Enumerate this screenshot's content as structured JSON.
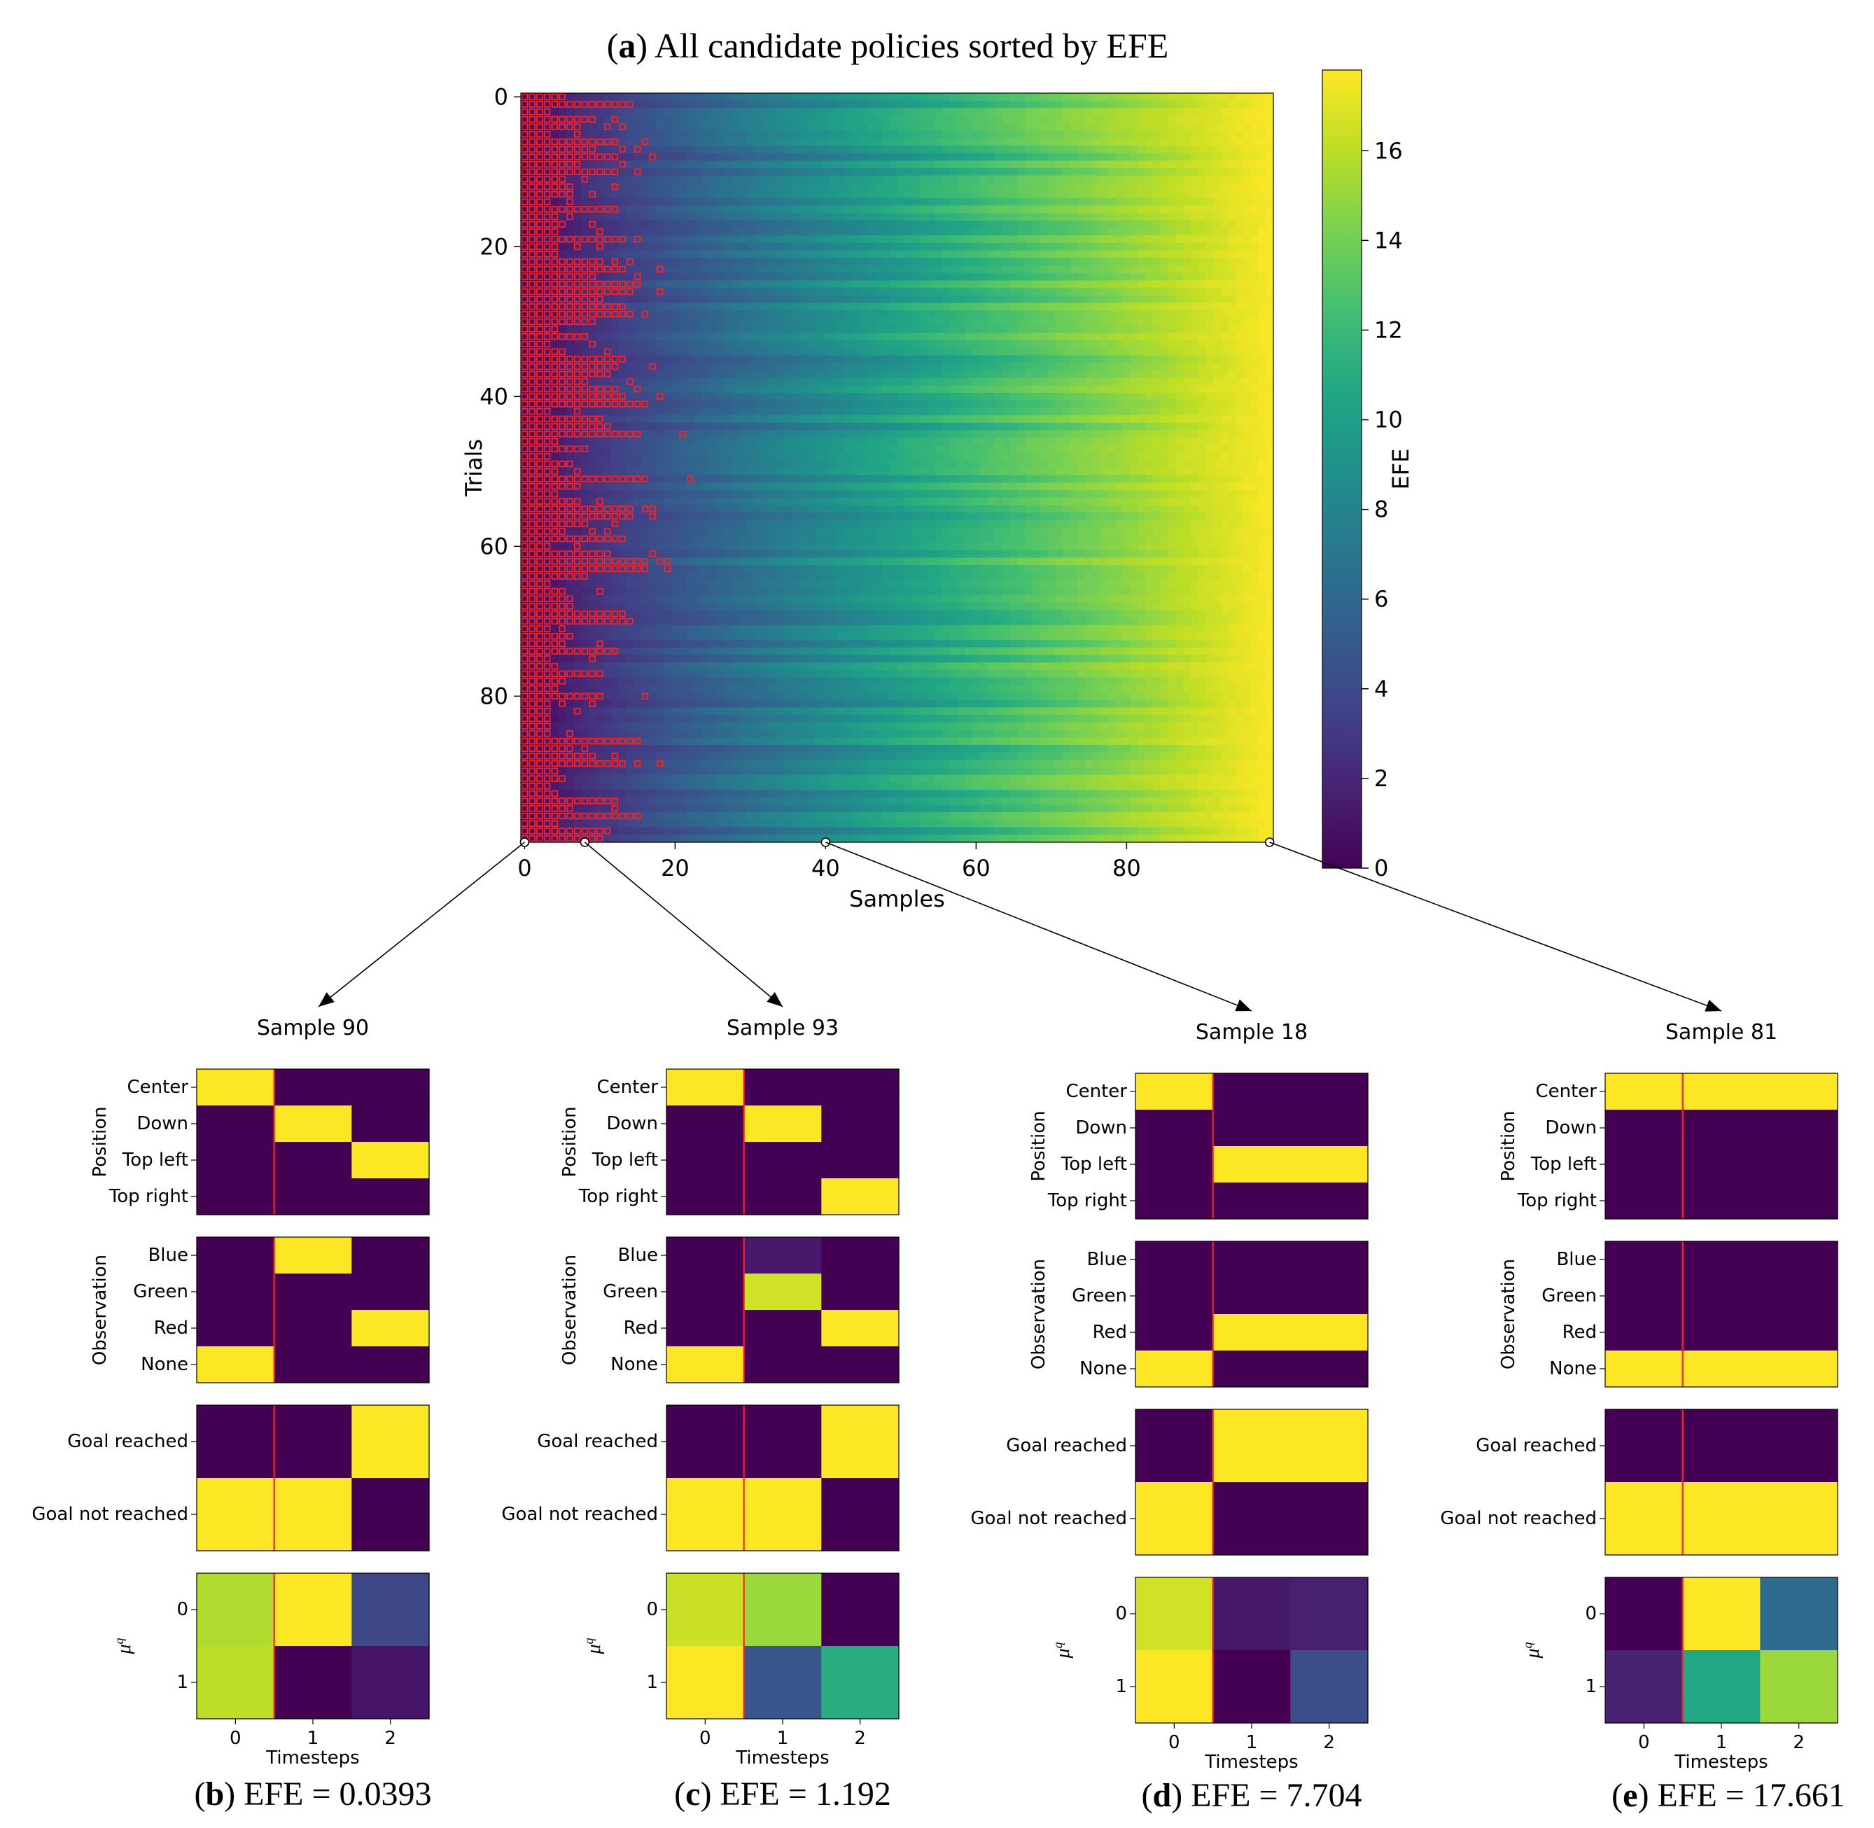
{
  "chart_data": [
    {
      "type": "heatmap",
      "panel_tag": "a",
      "title": "All candidate policies sorted by EFE",
      "xlabel": "Samples",
      "ylabel": "Trials",
      "xlim": [
        0,
        100
      ],
      "ylim": [
        0,
        100
      ],
      "xticks": [
        0,
        20,
        40,
        60,
        80
      ],
      "yticks": [
        0,
        20,
        40,
        60,
        80
      ],
      "colorbar_label": "EFE",
      "colorbar_ticks": [
        0,
        2,
        4,
        6,
        8,
        10,
        12,
        14,
        16
      ],
      "colorbar_range": [
        0,
        17.8
      ],
      "value_model": "EFE rises from about 0 at sample 0 to about 17.7 at sample 99 in every trial; red outlined squares mark the lowest-EFE samples (about the first 4 to 22 samples per trial)",
      "n_trials": 100,
      "n_samples": 100,
      "efe_endpoints": [
        0.0,
        17.7
      ],
      "highlight_color": "#ff2020",
      "marked_samples": [
        0,
        8,
        40,
        99
      ]
    },
    {
      "type": "heatmap",
      "panel_tag": "b",
      "title": "Sample 90",
      "caption": "EFE = 0.0393",
      "xlabel": "Timesteps",
      "xticks": [
        "0",
        "1",
        "2"
      ],
      "position": {
        "ylabel": "Position",
        "rows": [
          "Center",
          "Down",
          "Top left",
          "Top right"
        ],
        "values": [
          [
            1,
            0,
            0
          ],
          [
            0,
            1,
            0
          ],
          [
            0,
            0,
            1
          ],
          [
            0,
            0,
            0
          ]
        ]
      },
      "observation": {
        "ylabel": "Observation",
        "rows": [
          "Blue",
          "Green",
          "Red",
          "None"
        ],
        "values": [
          [
            0,
            1,
            0
          ],
          [
            0,
            0,
            0
          ],
          [
            0,
            0,
            1
          ],
          [
            1,
            0,
            0
          ]
        ]
      },
      "goal": {
        "rows": [
          "Goal reached",
          "Goal not reached"
        ],
        "values": [
          [
            0,
            0,
            1
          ],
          [
            1,
            1,
            0
          ]
        ]
      },
      "mu": {
        "ylabel": "μ^q",
        "rows": [
          "0",
          "1"
        ],
        "values": [
          [
            0.88,
            1.0,
            0.22
          ],
          [
            0.9,
            0.0,
            0.06
          ]
        ]
      }
    },
    {
      "type": "heatmap",
      "panel_tag": "c",
      "title": "Sample 93",
      "caption": "EFE = 1.192",
      "xlabel": "Timesteps",
      "xticks": [
        "0",
        "1",
        "2"
      ],
      "position": {
        "ylabel": "Position",
        "rows": [
          "Center",
          "Down",
          "Top left",
          "Top right"
        ],
        "values": [
          [
            1,
            0,
            0
          ],
          [
            0,
            1,
            0
          ],
          [
            0,
            0,
            0
          ],
          [
            0,
            0,
            1
          ]
        ]
      },
      "observation": {
        "ylabel": "Observation",
        "rows": [
          "Blue",
          "Green",
          "Red",
          "None"
        ],
        "values": [
          [
            0,
            0.07,
            0
          ],
          [
            0,
            0.93,
            0
          ],
          [
            0,
            0,
            1
          ],
          [
            1,
            0,
            0
          ]
        ]
      },
      "goal": {
        "rows": [
          "Goal reached",
          "Goal not reached"
        ],
        "values": [
          [
            0,
            0,
            1
          ],
          [
            1,
            1,
            0
          ]
        ]
      },
      "mu": {
        "ylabel": "μ^q",
        "rows": [
          "0",
          "1"
        ],
        "values": [
          [
            0.92,
            0.85,
            0.0
          ],
          [
            1.0,
            0.27,
            0.62
          ]
        ]
      }
    },
    {
      "type": "heatmap",
      "panel_tag": "d",
      "title": "Sample 18",
      "caption": "EFE = 7.704",
      "xlabel": "Timesteps",
      "xticks": [
        "0",
        "1",
        "2"
      ],
      "position": {
        "ylabel": "Position",
        "rows": [
          "Center",
          "Down",
          "Top left",
          "Top right"
        ],
        "values": [
          [
            1,
            0,
            0
          ],
          [
            0,
            0,
            0
          ],
          [
            0,
            1,
            1
          ],
          [
            0,
            0,
            0
          ]
        ]
      },
      "observation": {
        "ylabel": "Observation",
        "rows": [
          "Blue",
          "Green",
          "Red",
          "None"
        ],
        "values": [
          [
            0,
            0,
            0
          ],
          [
            0,
            0,
            0
          ],
          [
            0,
            1,
            1
          ],
          [
            1,
            0,
            0
          ]
        ]
      },
      "goal": {
        "rows": [
          "Goal reached",
          "Goal not reached"
        ],
        "values": [
          [
            0,
            1,
            1
          ],
          [
            1,
            0,
            0
          ]
        ]
      },
      "mu": {
        "ylabel": "μ^q",
        "rows": [
          "0",
          "1"
        ],
        "values": [
          [
            0.93,
            0.07,
            0.09
          ],
          [
            1.0,
            0.0,
            0.24
          ]
        ]
      }
    },
    {
      "type": "heatmap",
      "panel_tag": "e",
      "title": "Sample 81",
      "caption": "EFE = 17.661",
      "xlabel": "Timesteps",
      "xticks": [
        "0",
        "1",
        "2"
      ],
      "position": {
        "ylabel": "Position",
        "rows": [
          "Center",
          "Down",
          "Top left",
          "Top right"
        ],
        "values": [
          [
            1,
            1,
            1
          ],
          [
            0,
            0,
            0
          ],
          [
            0,
            0,
            0
          ],
          [
            0,
            0,
            0
          ]
        ]
      },
      "observation": {
        "ylabel": "Observation",
        "rows": [
          "Blue",
          "Green",
          "Red",
          "None"
        ],
        "values": [
          [
            0,
            0,
            0
          ],
          [
            0,
            0,
            0
          ],
          [
            0,
            0,
            0
          ],
          [
            1,
            1,
            1
          ]
        ]
      },
      "goal": {
        "rows": [
          "Goal reached",
          "Goal not reached"
        ],
        "values": [
          [
            0,
            0,
            0
          ],
          [
            1,
            1,
            1
          ]
        ]
      },
      "mu": {
        "ylabel": "μ^q",
        "rows": [
          "0",
          "1"
        ],
        "values": [
          [
            0.0,
            1.0,
            0.35
          ],
          [
            0.1,
            0.6,
            0.85
          ]
        ]
      }
    }
  ]
}
